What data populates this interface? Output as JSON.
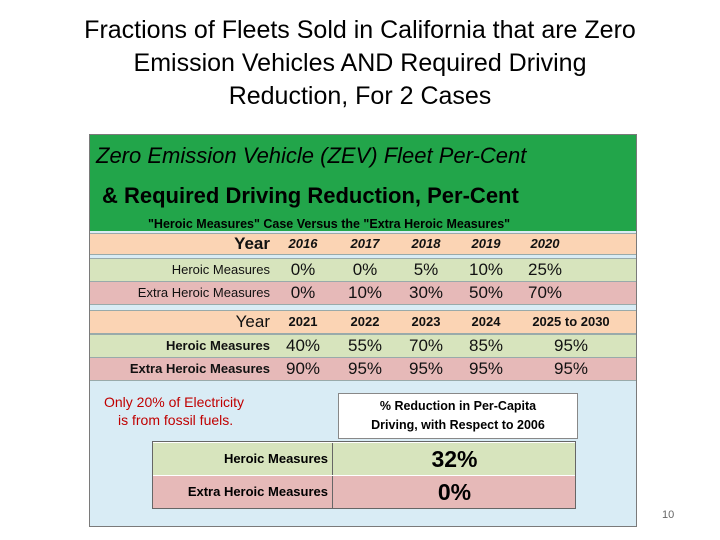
{
  "slide": {
    "title_lines": [
      "Fractions of Fleets Sold in California that are Zero",
      "Emission Vehicles AND Required Driving",
      "Reduction, For 2 Cases"
    ],
    "page_number": "10"
  },
  "header": {
    "line1": "Zero Emission Vehicle (ZEV) Fleet Per-Cent",
    "line2": "& Required Driving Reduction, Per-Cent",
    "line3": "\"Heroic Measures\" Case Versus the \"Extra Heroic Measures\""
  },
  "table1": {
    "year_label": "Year",
    "years": [
      "2016",
      "2017",
      "2018",
      "2019",
      "2020"
    ],
    "heroic_label": "Heroic Measures",
    "heroic": [
      "0%",
      "0%",
      "5%",
      "10%",
      "25%"
    ],
    "extra_label": "Extra Heroic Measures",
    "extra": [
      "0%",
      "10%",
      "30%",
      "50%",
      "70%"
    ]
  },
  "table2": {
    "year_label": "Year",
    "years": [
      "2021",
      "2022",
      "2023",
      "2024",
      "2025 to 2030"
    ],
    "heroic_label": "Heroic Measures",
    "heroic": [
      "40%",
      "55%",
      "70%",
      "85%",
      "95%"
    ],
    "extra_label": "Extra Heroic Measures",
    "extra": [
      "90%",
      "95%",
      "95%",
      "95%",
      "95%"
    ]
  },
  "note": {
    "line1": "Only 20% of Electricity",
    "line2": "is from fossil fuels."
  },
  "driving": {
    "heading_line1": "% Reduction in Per-Capita",
    "heading_line2": "Driving, with Respect to 2006",
    "heroic_label": "Heroic Measures",
    "heroic_value": "32%",
    "extra_label": "Extra Heroic Measures",
    "extra_value": "0%"
  },
  "colors": {
    "header_green": "#22a54a",
    "year_row": "#fbd4b4",
    "heroic_row": "#d7e4bd",
    "extra_row": "#e6b9b8",
    "panel_bg": "#d9ecf5",
    "note_red": "#c00000"
  }
}
